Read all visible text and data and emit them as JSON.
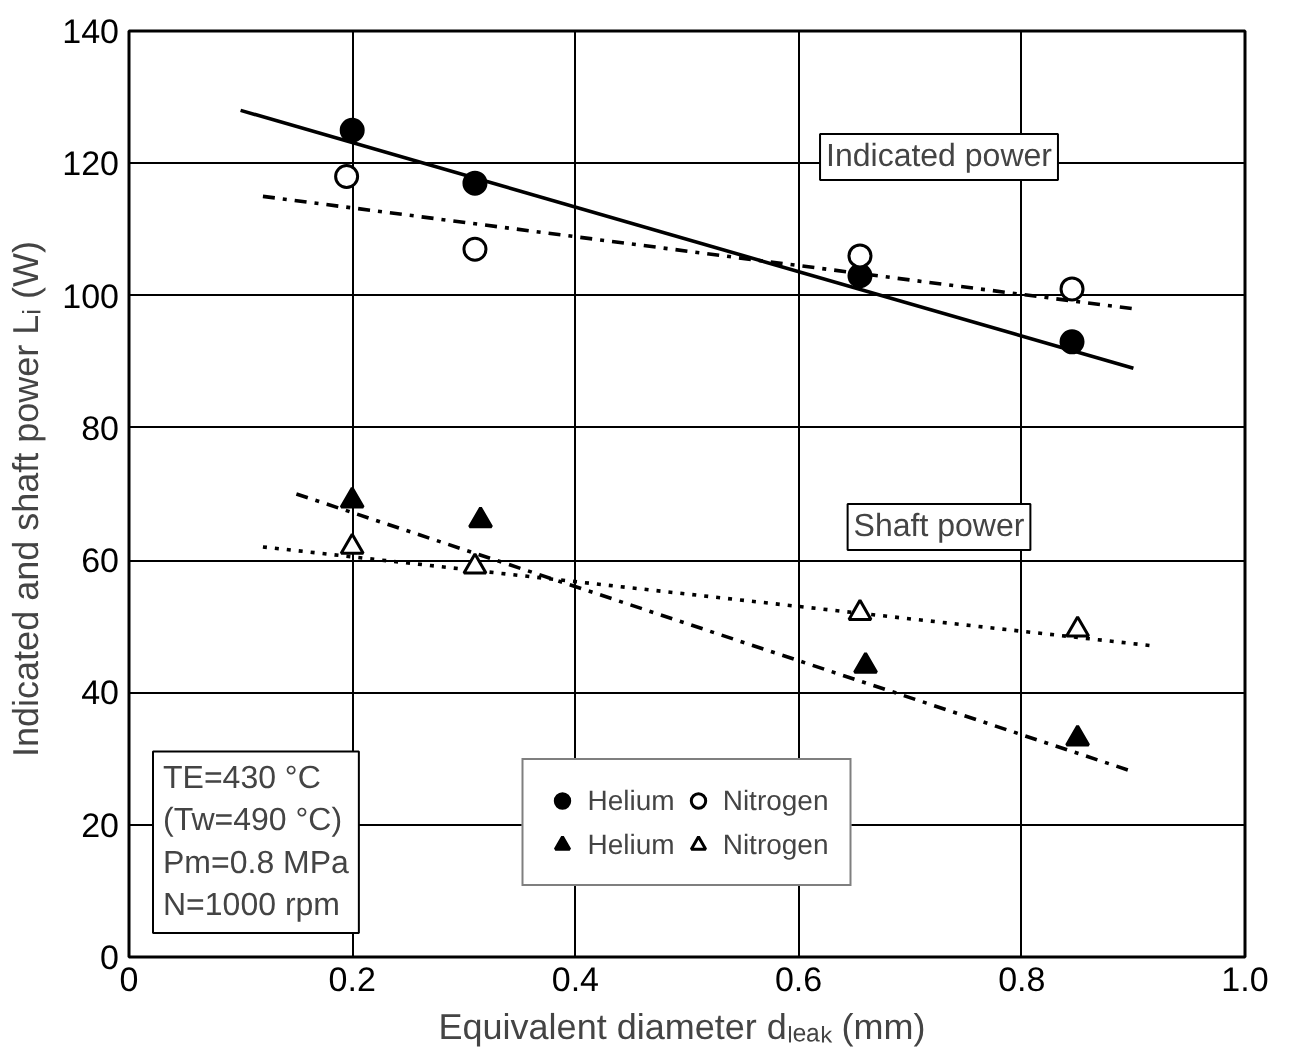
{
  "chart_data": {
    "type": "scatter",
    "xlabel": "Equivalent diameter  dₗₑₐₖ (mm)",
    "ylabel": "Indicated and shaft power  Lᵢ (W)",
    "xlim": [
      0,
      1
    ],
    "ylim": [
      0,
      140
    ],
    "xticks": [
      0,
      0.2,
      0.4,
      0.6,
      0.8,
      {
        "value": 1,
        "label": "1.0"
      }
    ],
    "yticks": [
      0,
      20,
      40,
      60,
      80,
      100,
      120,
      140
    ],
    "grid": true,
    "legend": "bottom",
    "series": [
      {
        "name": "Helium",
        "marker": "circle",
        "color": "#000000",
        "x": [
          0.2,
          0.31,
          0.655,
          0.845
        ],
        "values": [
          125,
          117,
          103,
          93
        ]
      },
      {
        "name": "Nitrogen",
        "marker": "circle",
        "color": "#ffffff",
        "x": [
          0.195,
          0.31,
          0.655,
          0.845
        ],
        "values": [
          118,
          107,
          106,
          101
        ]
      },
      {
        "name": "Helium",
        "marker": "triangle",
        "color": "#000000",
        "x": [
          0.2,
          0.315,
          0.66,
          0.85
        ],
        "values": [
          69,
          66,
          44,
          33
        ]
      },
      {
        "name": "Nitrogen",
        "marker": "triangle",
        "color": "#ffffff",
        "x": [
          0.2,
          0.31,
          0.655,
          0.85
        ],
        "values": [
          62,
          59,
          52,
          49.5
        ]
      },
      {
        "type": "line",
        "line_style": "solid",
        "color": "#000000",
        "x": [
          0.1,
          0.9
        ],
        "values": [
          128,
          89
        ]
      },
      {
        "type": "line",
        "line_style": "dashed",
        "color": "#000000",
        "x": [
          0.12,
          0.9
        ],
        "values": [
          115,
          98
        ]
      },
      {
        "type": "line",
        "line_style": "dashed",
        "color": "#000000",
        "x": [
          0.15,
          0.9
        ],
        "values": [
          70,
          28
        ]
      },
      {
        "type": "line",
        "line_style": "dotted",
        "color": "#000000",
        "x": [
          0.12,
          0.92
        ],
        "values": [
          62,
          47
        ]
      }
    ],
    "annotations": [
      "Indicated power",
      "Shaft power",
      "TE=430 °C\n(Tw=490 °C)\nPm=0.8 MPa\nN=1000 rpm"
    ]
  }
}
